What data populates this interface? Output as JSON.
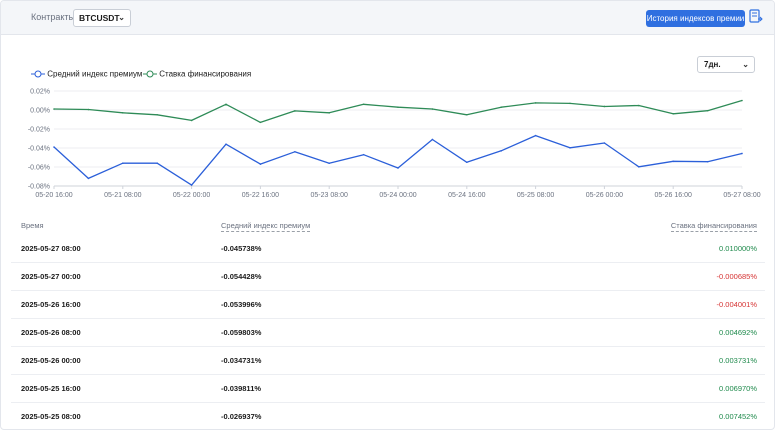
{
  "topbar": {
    "contract_label": "Контракты",
    "contract_value": "BTCUSDT",
    "history_button": "История индексов премии",
    "history_icon": "document-list-icon"
  },
  "chart_controls": {
    "period_value": "7дн."
  },
  "chart_data": {
    "type": "line",
    "x": [
      "05-20 16:00",
      "05-21 00:00",
      "05-21 08:00",
      "05-21 16:00",
      "05-22 00:00",
      "05-22 08:00",
      "05-22 16:00",
      "05-23 00:00",
      "05-23 08:00",
      "05-23 16:00",
      "05-24 00:00",
      "05-24 08:00",
      "05-24 16:00",
      "05-25 00:00",
      "05-25 08:00",
      "05-25 16:00",
      "05-26 00:00",
      "05-26 08:00",
      "05-26 16:00",
      "05-27 00:00",
      "05-27 08:00"
    ],
    "x_tick_labels": [
      "05-20 16:00",
      "05-21 08:00",
      "05-22 00:00",
      "05-22 16:00",
      "05-23 08:00",
      "05-24 00:00",
      "05-24 16:00",
      "05-25 08:00",
      "05-26 00:00",
      "05-26 16:00",
      "05-27 08:00"
    ],
    "y_tick_labels": [
      "0.02%",
      "0.00%",
      "-0.02%",
      "-0.04%",
      "-0.06%",
      "-0.08%"
    ],
    "ylim": [
      -0.08,
      0.02
    ],
    "grid": true,
    "legend_position": "top-left",
    "series": [
      {
        "name": "Средний индекс премиум",
        "color": "#2b5fd9",
        "values": [
          -0.039,
          -0.072,
          -0.056,
          -0.056,
          -0.079,
          -0.036,
          -0.057,
          -0.044,
          -0.056,
          -0.047,
          -0.061,
          -0.031,
          -0.055,
          -0.043,
          -0.026937,
          -0.039811,
          -0.034731,
          -0.059803,
          -0.053996,
          -0.054428,
          -0.045738
        ]
      },
      {
        "name": "Ставка финансирования",
        "color": "#2e8b57",
        "values": [
          0.001,
          0.0005,
          -0.003,
          -0.005,
          -0.011,
          0.006,
          -0.013,
          -0.001,
          -0.003,
          0.006,
          0.003,
          0.001,
          -0.005,
          0.003,
          0.007452,
          0.00697,
          0.003731,
          0.004692,
          -0.004001,
          -0.000685,
          0.01
        ]
      }
    ]
  },
  "table": {
    "headers": {
      "time": "Время",
      "premium": "Средний индекс премиум",
      "funding": "Ставка финансирования"
    },
    "rows": [
      {
        "time": "2025-05-27 08:00",
        "premium": "-0.045738%",
        "funding": "0.010000%",
        "funding_sign": "pos"
      },
      {
        "time": "2025-05-27 00:00",
        "premium": "-0.054428%",
        "funding": "-0.000685%",
        "funding_sign": "neg"
      },
      {
        "time": "2025-05-26 16:00",
        "premium": "-0.053996%",
        "funding": "-0.004001%",
        "funding_sign": "neg"
      },
      {
        "time": "2025-05-26 08:00",
        "premium": "-0.059803%",
        "funding": "0.004692%",
        "funding_sign": "pos"
      },
      {
        "time": "2025-05-26 00:00",
        "premium": "-0.034731%",
        "funding": "0.003731%",
        "funding_sign": "pos"
      },
      {
        "time": "2025-05-25 16:00",
        "premium": "-0.039811%",
        "funding": "0.006970%",
        "funding_sign": "pos"
      },
      {
        "time": "2025-05-25 08:00",
        "premium": "-0.026937%",
        "funding": "0.007452%",
        "funding_sign": "pos"
      }
    ]
  }
}
